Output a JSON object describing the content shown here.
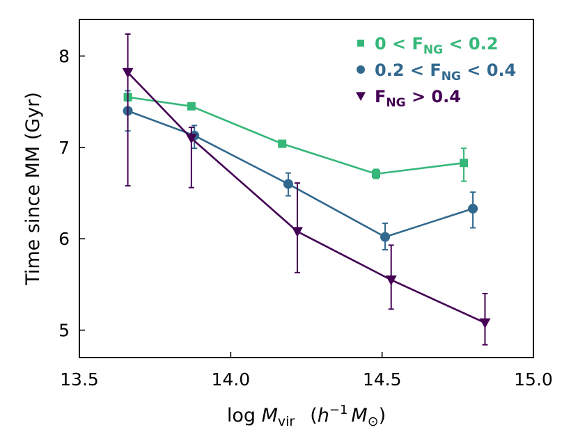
{
  "chart_data": {
    "type": "line",
    "xlabel": "log M_vir   (h^-1 M_sun)",
    "xlabel_parts": {
      "pre": "log ",
      "M": "M",
      "vir": "vir",
      "open": "(",
      "h": "h",
      "exp": "−1",
      "M2": "M",
      "sun": "⊙",
      "close": ")"
    },
    "ylabel": "Time since MM (Gyr)",
    "xlim": [
      13.5,
      15.0
    ],
    "ylim": [
      4.7,
      8.4
    ],
    "xticks": [
      13.5,
      14.0,
      14.5,
      15.0
    ],
    "xtick_labels": [
      "13.5",
      "14.0",
      "14.5",
      "15.0"
    ],
    "yticks": [
      5,
      6,
      7,
      8
    ],
    "ytick_labels": [
      "5",
      "6",
      "7",
      "8"
    ],
    "grid": false,
    "legend_position": "top-right",
    "series": [
      {
        "name": "0 < F_NG < 0.2",
        "legend": {
          "pre": "0 < F",
          "sub": "NG",
          "post": " < 0.2"
        },
        "color": "#35b779",
        "marker": "square",
        "x": [
          13.66,
          13.87,
          14.17,
          14.48,
          14.77
        ],
        "y": [
          7.55,
          7.45,
          7.04,
          6.71,
          6.83
        ],
        "err_low": [
          0.04,
          0.03,
          0.03,
          0.05,
          0.2
        ],
        "err_high": [
          0.04,
          0.03,
          0.03,
          0.05,
          0.16
        ]
      },
      {
        "name": "0.2 < F_NG < 0.4",
        "legend": {
          "pre": "0.2 < F",
          "sub": "NG",
          "post": " < 0.4"
        },
        "color": "#31688e",
        "marker": "circle",
        "x": [
          13.66,
          13.88,
          14.19,
          14.51,
          14.8
        ],
        "y": [
          7.4,
          7.13,
          6.6,
          6.02,
          6.33
        ],
        "err_low": [
          0.22,
          0.14,
          0.13,
          0.14,
          0.21
        ],
        "err_high": [
          0.22,
          0.11,
          0.12,
          0.15,
          0.18
        ]
      },
      {
        "name": "F_NG > 0.4",
        "legend": {
          "pre": "F",
          "sub": "NG",
          "post": " > 0.4"
        },
        "color": "#440154",
        "marker": "triangle-down",
        "x": [
          13.66,
          13.87,
          14.22,
          14.53,
          14.84
        ],
        "y": [
          7.82,
          7.1,
          6.08,
          5.55,
          5.08
        ],
        "err_low": [
          1.24,
          0.54,
          0.45,
          0.32,
          0.24
        ],
        "err_high": [
          0.42,
          0.12,
          0.53,
          0.38,
          0.32
        ]
      }
    ]
  }
}
